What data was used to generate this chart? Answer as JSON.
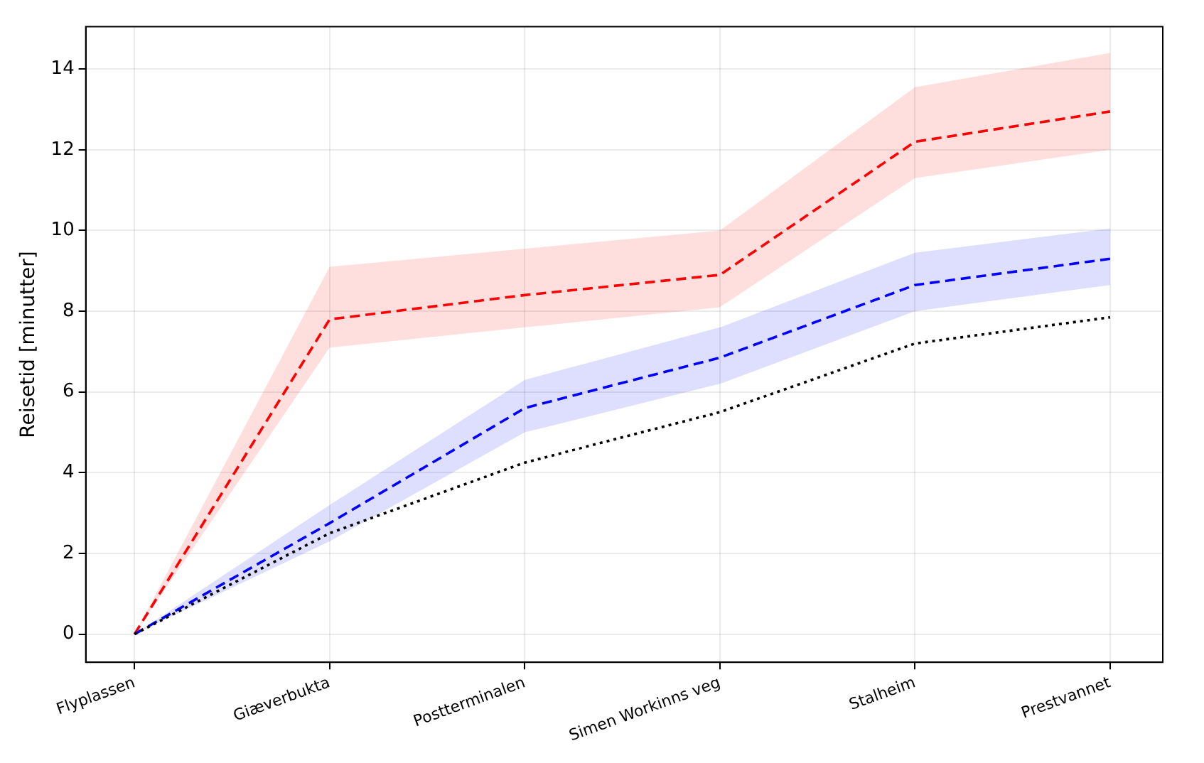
{
  "chart_data": {
    "type": "line",
    "ylabel": "Reisetid [minutter]",
    "categories": [
      "Flyplassen",
      "Giæverbukta",
      "Postterminalen",
      "Simen Workinns veg",
      "Stalheim",
      "Prestvannet"
    ],
    "series": [
      {
        "color": "#ff0000",
        "line_style": "dashed",
        "values": [
          0,
          7.8,
          8.4,
          8.9,
          12.2,
          12.95
        ],
        "lower": [
          0,
          7.1,
          7.6,
          8.1,
          11.3,
          12.0
        ],
        "upper": [
          0,
          9.1,
          9.55,
          10.0,
          13.55,
          14.4
        ]
      },
      {
        "color": "#0000ff",
        "line_style": "dashed",
        "values": [
          0,
          2.75,
          5.6,
          6.85,
          8.65,
          9.3
        ],
        "lower": [
          0,
          2.3,
          5.0,
          6.2,
          8.0,
          8.65
        ],
        "upper": [
          0,
          3.2,
          6.3,
          7.6,
          9.45,
          10.05
        ]
      },
      {
        "color": "#000000",
        "line_style": "dotted",
        "values": [
          0,
          2.5,
          4.25,
          5.5,
          7.2,
          7.85
        ]
      }
    ],
    "ylim": [
      -0.7,
      15.05
    ],
    "yticks": [
      0,
      2,
      4,
      6,
      8,
      10,
      12,
      14
    ],
    "grid": true,
    "legend": false,
    "marker": "none"
  }
}
